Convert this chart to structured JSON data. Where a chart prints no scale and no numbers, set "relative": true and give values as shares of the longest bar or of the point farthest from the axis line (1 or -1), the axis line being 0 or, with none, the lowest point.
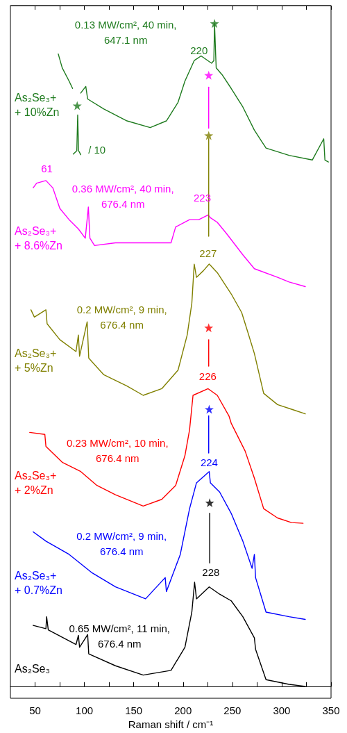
{
  "chart_data": {
    "type": "line",
    "relative": true,
    "xlabel": "Raman shift / cm⁻¹",
    "xlim": [
      25,
      350
    ],
    "xticks": [
      50,
      {
        "value": 75,
        "label": null
      },
      100,
      {
        "value": 125,
        "label": null
      },
      150,
      {
        "value": 175,
        "label": null
      },
      200,
      {
        "value": 225,
        "label": null
      },
      250,
      {
        "value": 275,
        "label": null
      },
      300,
      {
        "value": 325,
        "label": null
      },
      350
    ],
    "tick_labels": "x",
    "grid": false,
    "legend": false,
    "marker": "none",
    "line_style": "solid",
    "series": [
      {
        "name": "As₂Se₃+\n+ 10%Zn",
        "color": "#1e7b1e",
        "x": [
          73.5,
          77.5,
          84.5,
          88,
          92,
          96.3,
          101.4,
          103.3,
          119.7,
          143.2,
          166.7,
          183.1,
          194.9,
          201.9,
          211.3,
          218.3,
          228.9,
          231.2,
          231.9,
          233.1,
          233.6,
          239.4,
          248.8,
          260.6,
          272.3,
          284.1,
          307.5,
          331,
          342.6,
          343.8,
          347.3
        ],
        "values": [
          0.954,
          0.933,
          0.913,
          0.902,
          null,
          0.895,
          0.905,
          0.886,
          0.871,
          0.853,
          0.843,
          0.853,
          0.881,
          0.913,
          0.944,
          0.951,
          0.94,
          0.944,
          1,
          0.951,
          0.933,
          0.923,
          0.902,
          0.874,
          0.839,
          0.812,
          0.801,
          0.794,
          0.826,
          0.794,
          0.791
        ]
      },
      {
        "color": "#1e7b1e",
        "x": [
          88.7,
          92.3,
          93.2,
          94.1,
          96.3
        ],
        "values": [
          0.803,
          0.808,
          0.862,
          0.808,
          0.802
        ]
      },
      {
        "name": "As₂Se₃+\n+ 8.6%Zn",
        "color": "#ff00ff",
        "x": [
          48.1,
          51.6,
          61,
          68,
          75.1,
          84.5,
          93.9,
          100.9,
          104,
          105.6,
          110.3,
          131.5,
          154.9,
          178.4,
          187.8,
          192.5,
          206.6,
          216,
          225.4,
          227.7,
          234.7,
          244.1,
          260.6,
          272.3,
          295.8,
          307.5,
          323.9
        ],
        "values": [
          0.752,
          0.759,
          0.763,
          0.752,
          0.721,
          0.704,
          0.69,
          0.676,
          0.723,
          0.676,
          0.665,
          0.669,
          0.669,
          0.669,
          0.669,
          0.693,
          0.704,
          0.704,
          0.711,
          0.707,
          0.7,
          0.683,
          0.651,
          0.63,
          0.617,
          0.61,
          0.603
        ]
      },
      {
        "name": "As₂Se₃+\n+ 5%Zn",
        "color": "#808000",
        "x": [
          45.8,
          49.3,
          61,
          62.2,
          75.1,
          91.5,
          93.9,
          95.1,
          102.8,
          104.4,
          119.7,
          143.2,
          159.6,
          178.4,
          194.9,
          204.2,
          208.9,
          211.3,
          213.6,
          220.6,
          226.5,
          234.7,
          248.8,
          259.4,
          265.3,
          272.3,
          281.7,
          295.8,
          309.9,
          323.9
        ],
        "values": [
          0.568,
          0.557,
          0.568,
          0.547,
          0.523,
          0.505,
          0.53,
          0.498,
          0.55,
          0.495,
          0.47,
          0.453,
          0.439,
          0.449,
          0.477,
          0.53,
          0.578,
          0.637,
          0.617,
          0.627,
          0.637,
          0.624,
          0.592,
          0.564,
          0.536,
          0.502,
          0.442,
          0.425,
          0.418,
          0.411
        ]
      },
      {
        "name": "As₂Se₃+\n+ 2%Zn",
        "color": "#ff0000",
        "x": [
          44.6,
          59.9,
          61,
          77.5,
          96.3,
          112.7,
          131.5,
          159.6,
          178.4,
          192.5,
          201.9,
          206.6,
          210.1,
          225.4,
          234.7,
          246.5,
          248.8,
          262.9,
          272.3,
          281.7,
          295.8,
          309.9,
          321.6
        ],
        "values": [
          0.383,
          0.38,
          0.362,
          0.338,
          0.324,
          0.303,
          0.289,
          0.272,
          0.282,
          0.303,
          0.348,
          0.387,
          0.439,
          0.449,
          0.439,
          0.408,
          0.397,
          0.355,
          0.314,
          0.268,
          0.254,
          0.247,
          0.246
        ]
      },
      {
        "name": "As₂Se₃+\n+ 0.7%Zn",
        "color": "#0000ff",
        "x": [
          48.1,
          61,
          84.5,
          108,
          131.5,
          162,
          181.9,
          183.1,
          197.2,
          206.6,
          213.6,
          226.5,
          227.7,
          237.1,
          248.8,
          260.6,
          270,
          272.3,
          273.5,
          284.1,
          307.5,
          323.9
        ],
        "values": [
          0.233,
          0.219,
          0.199,
          0.171,
          0.15,
          0.132,
          0.164,
          0.143,
          0.199,
          0.268,
          0.307,
          0.324,
          0.307,
          0.293,
          0.261,
          0.219,
          0.178,
          0.199,
          0.164,
          0.112,
          0.105,
          0.101
        ]
      },
      {
        "name": "As₂Se₃",
        "color": "#000000",
        "x": [
          48.1,
          61,
          61.7,
          63.4,
          91.5,
          93.9,
          95.1,
          103.3,
          104.4,
          131.5,
          159.6,
          187.8,
          201.9,
          208.9,
          211.7,
          213.6,
          226.5,
          237.1,
          248.8,
          260.6,
          272.3,
          273.5,
          284.1,
          307.5,
          323.9
        ],
        "values": [
          0.092,
          0.087,
          0.105,
          0.085,
          0.063,
          0.077,
          0.059,
          0.078,
          0.049,
          0.031,
          0.017,
          0.024,
          0.059,
          0.112,
          0.157,
          0.132,
          0.15,
          0.139,
          0.129,
          0.105,
          0.073,
          0.056,
          0.01,
          0.003,
          0
        ]
      },
      {
        "color": "#ff00ff",
        "x": [
          226,
          226
        ],
        "values": [
          0.904,
          0.842
        ]
      },
      {
        "color": "#808000",
        "x": [
          226,
          226
        ],
        "values": [
          0.826,
          0.679
        ]
      },
      {
        "color": "#ff0000",
        "x": [
          226,
          226
        ],
        "values": [
          0.523,
          0.483
        ]
      },
      {
        "color": "#0000ff",
        "x": [
          226,
          226
        ],
        "values": [
          0.408,
          0.352
        ]
      },
      {
        "color": "#000000",
        "x": [
          227,
          227
        ],
        "values": [
          0.261,
          0.186
        ]
      },
      {
        "type": "scatter",
        "marker": "star",
        "x": [
          231.9,
          92.7,
          226,
          226,
          226,
          226.5,
          227
        ],
        "values": [
          1,
          0.876,
          0.922,
          0.831,
          0.541,
          0.418,
          0.277
        ],
        "colors": [
          "#1e7b1e",
          "#1e7b1e",
          "#ff00ff",
          "#808000",
          "#ff0000",
          "#0000ff",
          "#000000"
        ]
      }
    ],
    "annotations": [
      "0.13 MW/cm², 40 min,\n647.1 nm",
      "220",
      "/ 10",
      "61",
      "0.36 MW/cm², 40 min,\n676.4 nm",
      "223",
      "227",
      "0.2 MW/cm², 9 min,\n676.4 nm",
      "226",
      "0.23 MW/cm², 10 min,\n676.4 nm",
      "224",
      "0.2 MW/cm², 9 min,\n676.4 nm",
      "228",
      "0.65 MW/cm², 11 min,\n676.4 nm"
    ]
  }
}
